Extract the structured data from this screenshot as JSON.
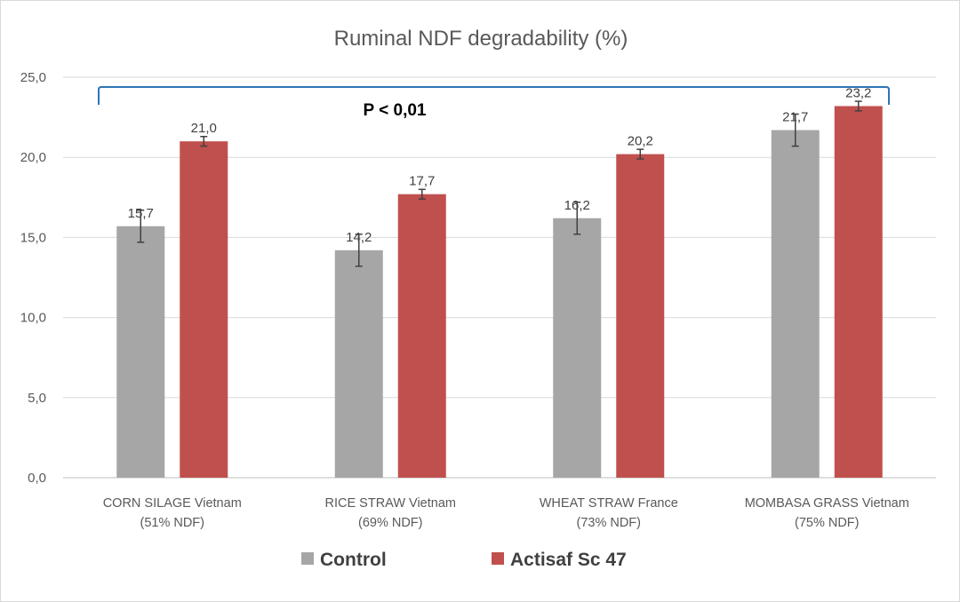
{
  "chart_data": {
    "type": "bar",
    "title": "Ruminal NDF degradability (%)",
    "xlabel": "",
    "ylabel": "",
    "ylim": [
      0,
      25
    ],
    "yticks": [
      "0,0",
      "5,0",
      "10,0",
      "15,0",
      "20,0",
      "25,0"
    ],
    "grid": true,
    "legend_position": "bottom",
    "categories": [
      {
        "line1": "CORN SILAGE Vietnam",
        "line2": "(51% NDF)"
      },
      {
        "line1": "RICE STRAW Vietnam",
        "line2": "(69% NDF)"
      },
      {
        "line1": "WHEAT STRAW France",
        "line2": "(73% NDF)"
      },
      {
        "line1": "MOMBASA GRASS Vietnam",
        "line2": "(75% NDF)"
      }
    ],
    "series": [
      {
        "name": "Control",
        "color": "#a6a6a6",
        "values": [
          15.7,
          14.2,
          16.2,
          21.7
        ],
        "labels": [
          "15,7",
          "14,2",
          "16,2",
          "21,7"
        ],
        "errors": [
          1.0,
          1.0,
          1.0,
          1.0
        ]
      },
      {
        "name": "Actisaf Sc 47",
        "color": "#c0504d",
        "values": [
          21.0,
          17.7,
          20.2,
          23.2
        ],
        "labels": [
          "21,0",
          "17,7",
          "20,2",
          "23,2"
        ],
        "errors": [
          0.3,
          0.3,
          0.3,
          0.3
        ]
      }
    ],
    "annotation": {
      "text": "P < 0,01",
      "bracket_color": "#2e75b6"
    }
  }
}
